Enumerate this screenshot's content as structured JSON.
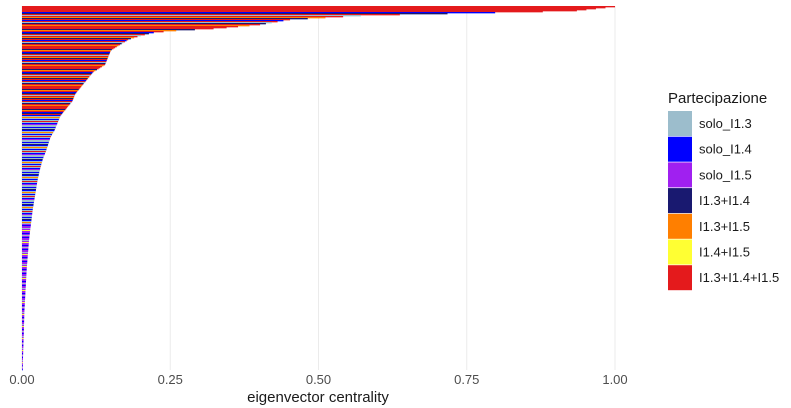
{
  "chart_data": {
    "type": "bar",
    "orientation": "horizontal",
    "xlabel": "eigenvector centrality",
    "ylabel": "",
    "xlim": [
      0,
      1.0
    ],
    "x_ticks": [
      "0.00",
      "0.25",
      "0.50",
      "0.75",
      "1.00"
    ],
    "x_tick_values": [
      0,
      0.25,
      0.5,
      0.75,
      1.0
    ],
    "grid": "vertical major lines",
    "legend": {
      "title": "Partecipazione",
      "placement": "right",
      "entries": [
        {
          "label": "solo_I1.3",
          "color": "#9CBDCC"
        },
        {
          "label": "solo_I1.4",
          "color": "#0000FF"
        },
        {
          "label": "solo_I1.5",
          "color": "#A020F0"
        },
        {
          "label": "I1.3+I1.4",
          "color": "#191970"
        },
        {
          "label": "I1.3+I1.5",
          "color": "#FF7F00"
        },
        {
          "label": "I1.4+I1.5",
          "color": "#FFFF33"
        },
        {
          "label": "I1.3+I1.4+I1.5",
          "color": "#E41A1C"
        }
      ]
    },
    "series_note": "bars sorted by eigenvector centrality in descending order, each bar colored by Partecipazione category",
    "profile": [
      [
        0,
        1.0,
        6
      ],
      [
        0.012,
        0.93,
        6
      ],
      [
        0.024,
        0.58,
        6
      ],
      [
        0.036,
        0.45,
        6
      ],
      [
        0.05,
        0.4,
        6
      ],
      [
        0.06,
        0.33,
        6
      ],
      [
        0.067,
        0.25,
        6
      ],
      [
        0.072,
        0.22,
        3
      ],
      [
        0.08,
        0.2,
        3
      ],
      [
        0.09,
        0.18,
        6
      ],
      [
        0.1,
        0.17,
        6
      ],
      [
        0.12,
        0.15,
        6
      ],
      [
        0.14,
        0.145,
        4
      ],
      [
        0.16,
        0.14,
        4
      ],
      [
        0.18,
        0.12,
        4
      ],
      [
        0.2,
        0.11,
        4
      ],
      [
        0.22,
        0.1,
        4
      ],
      [
        0.24,
        0.09,
        4
      ],
      [
        0.26,
        0.085,
        4
      ],
      [
        0.28,
        0.075,
        4
      ],
      [
        0.3,
        0.065,
        4
      ],
      [
        0.32,
        0.06,
        0
      ],
      [
        0.34,
        0.055,
        0
      ],
      [
        0.36,
        0.048,
        0
      ],
      [
        0.38,
        0.044,
        0
      ],
      [
        0.4,
        0.04,
        0
      ],
      [
        0.42,
        0.035,
        1
      ],
      [
        0.45,
        0.03,
        0
      ],
      [
        0.48,
        0.026,
        1
      ],
      [
        0.52,
        0.022,
        0
      ],
      [
        0.56,
        0.018,
        2
      ],
      [
        0.6,
        0.015,
        2
      ],
      [
        0.64,
        0.012,
        2
      ],
      [
        0.68,
        0.01,
        2
      ],
      [
        0.72,
        0.008,
        2
      ],
      [
        0.78,
        0.006,
        2
      ],
      [
        0.84,
        0.004,
        2
      ],
      [
        0.9,
        0.003,
        2
      ],
      [
        0.95,
        0.002,
        2
      ],
      [
        1.0,
        0.001,
        2
      ]
    ],
    "color_mix_top": [
      6,
      6,
      6,
      3,
      4,
      6,
      1,
      3,
      6,
      0,
      6,
      4,
      3,
      6,
      1,
      6,
      0,
      3,
      6,
      4
    ],
    "color_mix_mid": [
      0,
      1,
      0,
      3,
      1,
      0,
      4,
      0,
      1,
      0,
      6,
      0,
      1,
      2,
      0
    ],
    "color_mix_low": [
      2,
      0,
      2,
      1,
      2,
      2,
      0,
      2,
      5,
      2,
      2,
      1
    ]
  }
}
